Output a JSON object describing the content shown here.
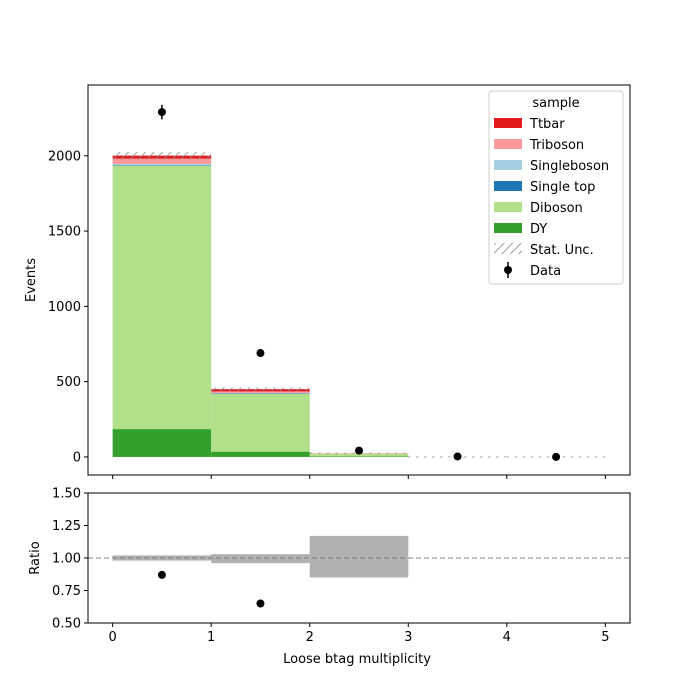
{
  "chart_data": [
    {
      "panel": "main",
      "type": "bar",
      "stacked": true,
      "xlabel": "",
      "ylabel": "Events",
      "xlim": [
        -0.25,
        5.25
      ],
      "ylim": [
        -120,
        2470
      ],
      "xticks": [
        0,
        1,
        2,
        3,
        4,
        5
      ],
      "yticks": [
        0,
        500,
        1000,
        1500,
        2000
      ],
      "ytick_labels": [
        "0",
        "500",
        "1000",
        "1500",
        "2000"
      ],
      "bin_edges": [
        0,
        1,
        2,
        3,
        4,
        5
      ],
      "series": [
        {
          "name": "DY",
          "color": "#33a02c",
          "values": [
            185,
            35,
            3,
            0,
            0
          ]
        },
        {
          "name": "Diboson",
          "color": "#b2df8a",
          "values": [
            1750,
            385,
            20,
            0,
            0
          ]
        },
        {
          "name": "Single top",
          "color": "#1f78b4",
          "values": [
            3,
            2,
            0,
            0,
            0
          ]
        },
        {
          "name": "Singleboson",
          "color": "#a6cee3",
          "values": [
            8,
            3,
            0,
            0,
            0
          ]
        },
        {
          "name": "Triboson",
          "color": "#fb9a99",
          "values": [
            35,
            10,
            1,
            0,
            0
          ]
        },
        {
          "name": "Ttbar",
          "color": "#e31a1c",
          "values": [
            20,
            15,
            0,
            0,
            0
          ]
        }
      ],
      "totals": [
        2001,
        450,
        24,
        0,
        0
      ],
      "stat_unc": [
        25,
        12,
        5,
        0,
        0
      ],
      "data": {
        "name": "Data",
        "x": [
          0.5,
          1.5,
          2.5,
          3.5,
          4.5
        ],
        "y": [
          2290,
          690,
          42,
          3,
          0
        ],
        "yerr": [
          48,
          26,
          7,
          2,
          0
        ]
      },
      "legend": {
        "title": "sample",
        "location": "top-right",
        "entries": [
          "Ttbar",
          "Triboson",
          "Singleboson",
          "Single top",
          "Diboson",
          "DY",
          "Stat. Unc.",
          "Data"
        ]
      },
      "grid": false
    },
    {
      "panel": "ratio",
      "type": "scatter",
      "xlabel": "Loose btag multiplicity",
      "ylabel": "Ratio",
      "xlim": [
        -0.25,
        5.25
      ],
      "ylim": [
        0.5,
        1.5
      ],
      "xticks": [
        0,
        1,
        2,
        3,
        4,
        5
      ],
      "xtick_labels": [
        "0",
        "1",
        "2",
        "3",
        "4",
        "5"
      ],
      "yticks": [
        0.5,
        0.75,
        1.0,
        1.25,
        1.5
      ],
      "ytick_labels": [
        "0.50",
        "0.75",
        "1.00",
        "1.25",
        "1.50"
      ],
      "reference_line": 1.0,
      "unc_band": [
        {
          "x0": 0,
          "x1": 1,
          "low": 0.98,
          "high": 1.02
        },
        {
          "x0": 1,
          "x1": 2,
          "low": 0.96,
          "high": 1.03
        },
        {
          "x0": 2,
          "x1": 3,
          "low": 0.85,
          "high": 1.17
        }
      ],
      "ratio_points": {
        "x": [
          0.5,
          1.5
        ],
        "y": [
          0.87,
          0.65
        ]
      },
      "grid": false
    }
  ]
}
